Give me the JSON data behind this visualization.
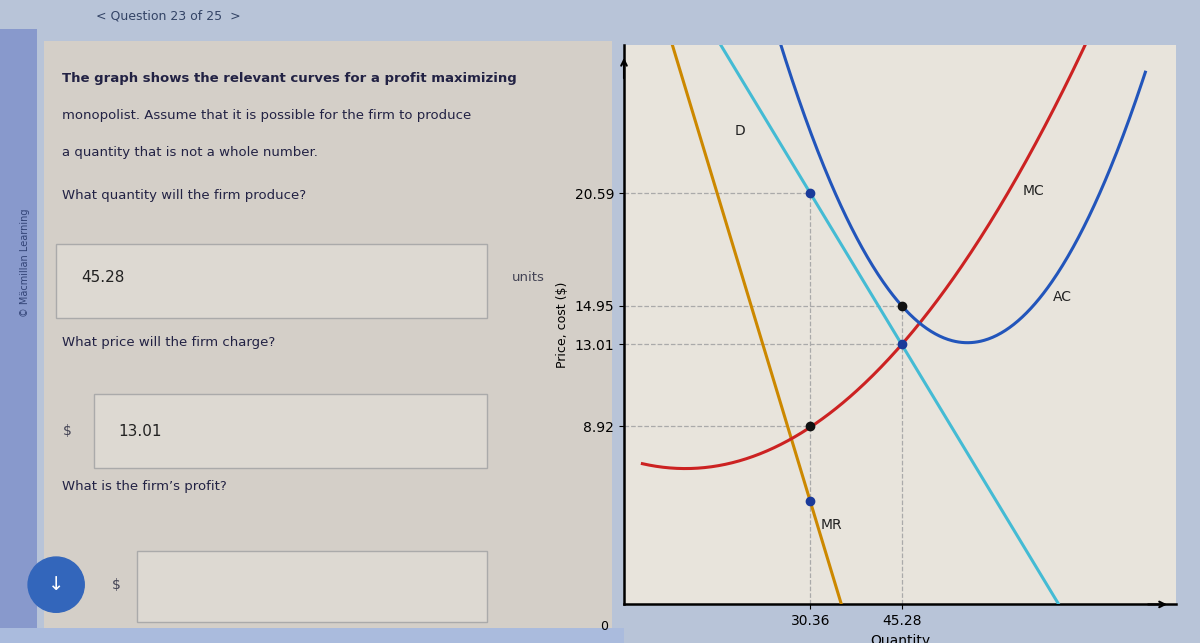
{
  "fig_width": 12.0,
  "fig_height": 6.43,
  "dpi": 100,
  "outer_bg": "#b8c4d8",
  "top_bar_bg": "#b8c4d8",
  "top_bar_text": "< Question 23 of 25  >",
  "top_bar_color": "#8899bb",
  "left_panel_bg": "#c8cdd8",
  "content_bg": "#d4cfc8",
  "graph_bg": "#e8e4dc",
  "graph_border": "#cccccc",
  "watermark_text": "© Mäcmillan Learning",
  "watermark_color": "#6677aa",
  "desc_lines": [
    "The graph shows the relevant curves for a profit maximizing",
    "monopolist. Assume that it is possible for the firm to produce",
    "a quantity that is not a whole number."
  ],
  "desc_color": "#222244",
  "desc_fontsize": 9.5,
  "q1_text": "What quantity will the firm produce?",
  "q1_answer": "45.28",
  "q1_units": "units",
  "q2_text": "What price will the firm charge?",
  "q2_dollar": "$",
  "q2_answer": "13.01",
  "q3_text": "What is the firm’s profit?",
  "q3_dollar": "$",
  "input_box_bg": "#ddd9d2",
  "input_box_edge": "#aaaaaa",
  "answer_color": "#222222",
  "arrow_btn_bg": "#3366bb",
  "ylabel": "Price, cost ($)",
  "xlabel": "Quantity",
  "x_ticks": [
    30.36,
    45.28
  ],
  "y_ticks": [
    8.92,
    13.01,
    14.95,
    20.59
  ],
  "q_star": 45.28,
  "q2_val": 30.36,
  "price": 13.01,
  "ac_at_q": 14.95,
  "d_at_q2": 20.59,
  "mr_at_q2": 8.92,
  "demand_color": "#44bbd4",
  "mr_color": "#cc8800",
  "mc_color": "#cc2222",
  "ac_color": "#2255bb",
  "dashed_color": "#aaaaaa",
  "dot_blue": "#1a3a9a",
  "dot_black": "#111111",
  "xlim": [
    0,
    90
  ],
  "ylim": [
    0,
    28
  ],
  "mc_qmin": 10,
  "mc_cmin": 6.8,
  "ac_qmin": 56,
  "ac_min_val": 13.1,
  "label_D": [
    18,
    23.5
  ],
  "label_MC": [
    65,
    20.5
  ],
  "label_MR": [
    32,
    3.8
  ],
  "label_AC": [
    70,
    15.2
  ]
}
